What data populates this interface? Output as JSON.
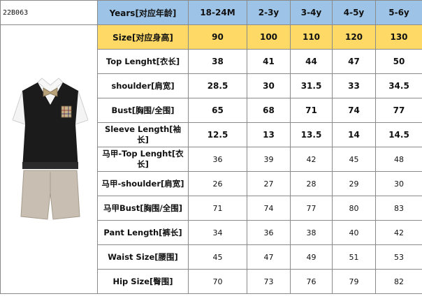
{
  "product_code": "22B063",
  "header": {
    "years_label": "Years[对应年龄]",
    "ages": [
      "18-24M",
      "2-3y",
      "3-4y",
      "4-5y",
      "5-6y"
    ]
  },
  "size_row": {
    "label": "Size[对应身高]",
    "values": [
      "90",
      "100",
      "110",
      "120",
      "130"
    ]
  },
  "rows": [
    {
      "label": "Top Lenght[衣长]",
      "values": [
        "38",
        "41",
        "44",
        "47",
        "50"
      ]
    },
    {
      "label": "shoulder[肩宽]",
      "values": [
        "28.5",
        "30",
        "31.5",
        "33",
        "34.5"
      ]
    },
    {
      "label": "Bust[胸围/全围]",
      "values": [
        "65",
        "68",
        "71",
        "74",
        "77"
      ]
    },
    {
      "label": "Sleeve Length[袖长]",
      "values": [
        "12.5",
        "13",
        "13.5",
        "14",
        "14.5"
      ]
    },
    {
      "label": "马甲-Top Lenght[衣长]",
      "values": [
        "36",
        "39",
        "42",
        "45",
        "48"
      ]
    },
    {
      "label": "马甲-shoulder[肩宽]",
      "values": [
        "26",
        "27",
        "28",
        "29",
        "30"
      ]
    },
    {
      "label": "马甲Bust[胸围/全围]",
      "values": [
        "71",
        "74",
        "77",
        "80",
        "83"
      ]
    },
    {
      "label": "Pant Length[裤长]",
      "values": [
        "34",
        "36",
        "38",
        "40",
        "42"
      ]
    },
    {
      "label": "Waist Size[腰围]",
      "values": [
        "45",
        "47",
        "49",
        "51",
        "53"
      ]
    },
    {
      "label": "Hip Size[臀围]",
      "values": [
        "70",
        "73",
        "76",
        "79",
        "82"
      ]
    }
  ],
  "colors": {
    "header_blue": "#9dc3e6",
    "size_yellow": "#ffd966",
    "vest": "#1b1b1b",
    "shorts": "#c8bfb2",
    "shirt": "#f4f4f4"
  },
  "image": {
    "subject": "boys-outfit-illustration"
  }
}
